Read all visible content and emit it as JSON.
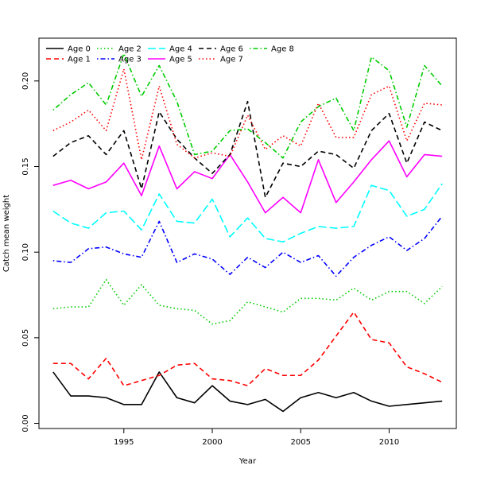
{
  "chart_data": {
    "type": "line",
    "title": "",
    "xlabel": "Year",
    "ylabel": "Catch mean weight",
    "xlim": [
      1990.2,
      2013.8
    ],
    "ylim": [
      -0.003,
      0.225
    ],
    "x_ticks": [
      1995,
      2000,
      2005,
      2010
    ],
    "y_ticks": [
      0.0,
      0.05,
      0.1,
      0.15,
      0.2
    ],
    "y_tick_labels": [
      "0.00",
      "0.05",
      "0.10",
      "0.15",
      "0.20"
    ],
    "grid": false,
    "legend_position": "top-left",
    "x": [
      1991,
      1992,
      1993,
      1994,
      1995,
      1996,
      1997,
      1998,
      1999,
      2000,
      2001,
      2002,
      2003,
      2004,
      2005,
      2006,
      2007,
      2008,
      2009,
      2010,
      2011,
      2012,
      2013
    ],
    "series": [
      {
        "name": "Age 0",
        "color": "#000000",
        "dash": "solid",
        "values": [
          0.03,
          0.016,
          0.016,
          0.015,
          0.011,
          0.011,
          0.03,
          0.015,
          0.012,
          0.022,
          0.013,
          0.011,
          0.014,
          0.007,
          0.015,
          0.018,
          0.015,
          0.018,
          0.013,
          0.01,
          0.011,
          0.012,
          0.013
        ]
      },
      {
        "name": "Age 1",
        "color": "#ff0000",
        "dash": "dashed",
        "values": [
          0.035,
          0.035,
          0.026,
          0.038,
          0.022,
          0.025,
          0.028,
          0.034,
          0.035,
          0.026,
          0.025,
          0.022,
          0.032,
          0.028,
          0.028,
          0.037,
          0.051,
          0.065,
          0.049,
          0.047,
          0.033,
          0.029,
          0.024
        ]
      },
      {
        "name": "Age 2",
        "color": "#00cc00",
        "dash": "dotted",
        "values": [
          0.067,
          0.068,
          0.068,
          0.084,
          0.069,
          0.081,
          0.069,
          0.067,
          0.066,
          0.058,
          0.06,
          0.071,
          0.068,
          0.065,
          0.073,
          0.073,
          0.072,
          0.079,
          0.072,
          0.077,
          0.077,
          0.07,
          0.08
        ]
      },
      {
        "name": "Age 3",
        "color": "#0000ff",
        "dash": "dotdash",
        "values": [
          0.095,
          0.094,
          0.102,
          0.103,
          0.099,
          0.097,
          0.118,
          0.094,
          0.099,
          0.096,
          0.087,
          0.097,
          0.091,
          0.1,
          0.094,
          0.098,
          0.086,
          0.097,
          0.104,
          0.109,
          0.101,
          0.108,
          0.121
        ]
      },
      {
        "name": "Age 4",
        "color": "#00ffff",
        "dash": "longdash",
        "values": [
          0.124,
          0.117,
          0.114,
          0.123,
          0.124,
          0.113,
          0.134,
          0.118,
          0.117,
          0.131,
          0.109,
          0.12,
          0.108,
          0.106,
          0.111,
          0.115,
          0.114,
          0.115,
          0.139,
          0.136,
          0.121,
          0.125,
          0.14
        ]
      },
      {
        "name": "Age 5",
        "color": "#ff00ff",
        "dash": "solid",
        "values": [
          0.139,
          0.142,
          0.137,
          0.141,
          0.152,
          0.133,
          0.162,
          0.137,
          0.147,
          0.143,
          0.157,
          0.141,
          0.123,
          0.132,
          0.123,
          0.154,
          0.129,
          0.141,
          0.154,
          0.165,
          0.144,
          0.157,
          0.156
        ]
      },
      {
        "name": "Age 6",
        "color": "#000000",
        "dash": "dashed",
        "values": [
          0.156,
          0.164,
          0.168,
          0.157,
          0.171,
          0.137,
          0.182,
          0.166,
          0.155,
          0.146,
          0.157,
          0.188,
          0.132,
          0.152,
          0.15,
          0.159,
          0.157,
          0.149,
          0.171,
          0.181,
          0.152,
          0.176,
          0.171
        ]
      },
      {
        "name": "Age 7",
        "color": "#ff0000",
        "dash": "dotted",
        "values": [
          0.171,
          0.176,
          0.183,
          0.171,
          0.207,
          0.154,
          0.197,
          0.163,
          0.155,
          0.158,
          0.156,
          0.18,
          0.16,
          0.168,
          0.162,
          0.187,
          0.167,
          0.167,
          0.192,
          0.197,
          0.165,
          0.187,
          0.186
        ]
      },
      {
        "name": "Age 8",
        "color": "#00cc00",
        "dash": "dotdash",
        "values": [
          0.183,
          0.192,
          0.199,
          0.186,
          0.216,
          0.191,
          0.209,
          0.188,
          0.157,
          0.159,
          0.171,
          0.172,
          0.164,
          0.155,
          0.176,
          0.185,
          0.19,
          0.171,
          0.214,
          0.206,
          0.173,
          0.209,
          0.197
        ]
      }
    ]
  }
}
